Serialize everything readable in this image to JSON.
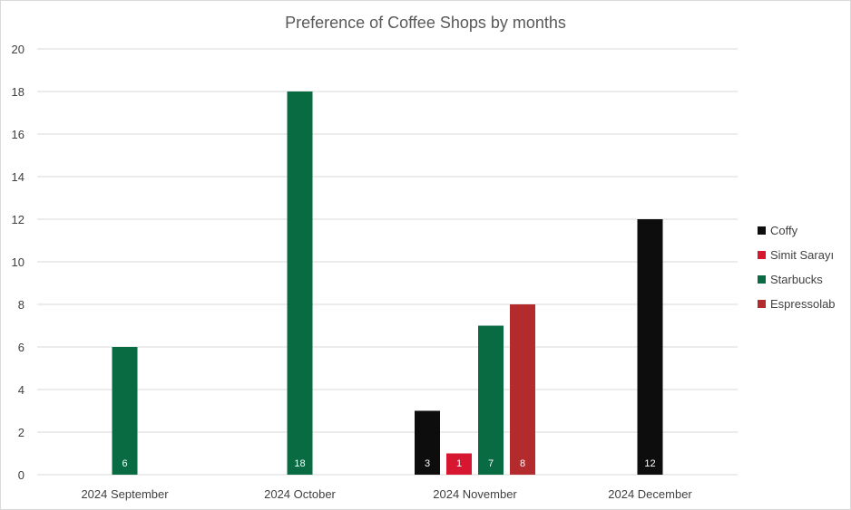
{
  "chart_data": {
    "type": "bar",
    "title": "Preference  of Coffee  Shops by months",
    "categories": [
      "2024 September",
      "2024 October",
      "2024 November",
      "2024 December"
    ],
    "series": [
      {
        "name": "Coffy",
        "color": "#0d0d0d",
        "values": [
          null,
          null,
          3,
          12
        ]
      },
      {
        "name": "Simit Sarayı",
        "color": "#d7172f",
        "values": [
          null,
          null,
          1,
          null
        ]
      },
      {
        "name": "Starbucks",
        "color": "#086b42",
        "values": [
          6,
          18,
          7,
          null
        ]
      },
      {
        "name": "Espressolab",
        "color": "#b42b2e",
        "values": [
          null,
          null,
          8,
          null
        ]
      }
    ],
    "ylim": [
      0,
      20
    ],
    "yticks": [
      0,
      2,
      4,
      6,
      8,
      10,
      12,
      14,
      16,
      18,
      20
    ],
    "grid": true,
    "legend_position": "right",
    "data_labels": true
  }
}
